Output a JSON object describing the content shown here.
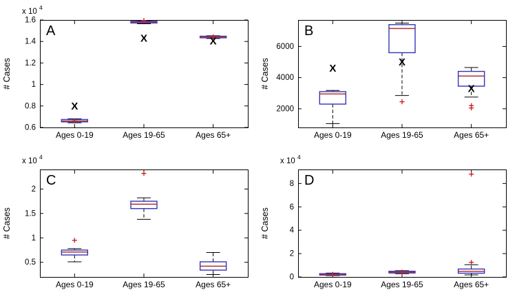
{
  "figure": {
    "background": "#ffffff"
  },
  "styles": {
    "box_color": "#3333bb",
    "median_color": "#b03030",
    "whisker_color": "#000000",
    "cap_color": "#000000",
    "outlier_color": "#cc2222",
    "x_marker_color": "#000000",
    "axis_color": "#000000"
  },
  "chart_data": [
    {
      "type": "boxplot",
      "panel_label": "A",
      "ylabel": "# Cases",
      "scale_label": {
        "base": "x 10",
        "exp": "4"
      },
      "categories": [
        "Ages 0-19",
        "Ages 19-65",
        "Ages 65+"
      ],
      "ylim": [
        6000,
        16000
      ],
      "yticks": [
        {
          "v": 6000,
          "label": "0.6"
        },
        {
          "v": 8000,
          "label": "0.8"
        },
        {
          "v": 10000,
          "label": "1"
        },
        {
          "v": 12000,
          "label": "1.2"
        },
        {
          "v": 14000,
          "label": "1.4"
        },
        {
          "v": 16000,
          "label": "1.6"
        }
      ],
      "boxes": [
        {
          "whisker_low": 6430,
          "q1": 6520,
          "median": 6600,
          "q3": 6740,
          "whisker_high": 6800,
          "outliers": [
            6620
          ],
          "x_marker": 8000
        },
        {
          "whisker_low": 15650,
          "q1": 15720,
          "median": 15800,
          "q3": 15880,
          "whisker_high": 15900,
          "outliers": [
            15950
          ],
          "x_marker": 14300
        },
        {
          "whisker_low": 14280,
          "q1": 14340,
          "median": 14430,
          "q3": 14490,
          "whisker_high": 14530,
          "outliers": [
            14430
          ],
          "x_marker": 14050
        }
      ]
    },
    {
      "type": "boxplot",
      "panel_label": "B",
      "ylabel": "# Cases",
      "scale_label": null,
      "categories": [
        "Ages 0-19",
        "Ages 19-65",
        "Ages 65+"
      ],
      "ylim": [
        800,
        7700
      ],
      "yticks": [
        {
          "v": 2000,
          "label": "2000"
        },
        {
          "v": 4000,
          "label": "4000"
        },
        {
          "v": 6000,
          "label": "6000"
        }
      ],
      "boxes": [
        {
          "whisker_low": 1050,
          "q1": 2300,
          "median": 2950,
          "q3": 3100,
          "whisker_high": 3180,
          "outliers": [],
          "x_marker": 4600
        },
        {
          "whisker_low": 2850,
          "q1": 5600,
          "median": 7150,
          "q3": 7400,
          "whisker_high": 7500,
          "outliers": [
            2450
          ],
          "x_marker": 5000
        },
        {
          "whisker_low": 2750,
          "q1": 3450,
          "median": 4100,
          "q3": 4400,
          "whisker_high": 4650,
          "outliers": [
            2050,
            2200
          ],
          "x_marker": 3300
        }
      ]
    },
    {
      "type": "boxplot",
      "panel_label": "C",
      "ylabel": "# Cases",
      "scale_label": {
        "base": "x 10",
        "exp": "4"
      },
      "categories": [
        "Ages 0-19",
        "Ages 19-65",
        "Ages 65+"
      ],
      "ylim": [
        2000,
        24000
      ],
      "yticks": [
        {
          "v": 5000,
          "label": "0.5"
        },
        {
          "v": 10000,
          "label": "1"
        },
        {
          "v": 15000,
          "label": "1.5"
        },
        {
          "v": 20000,
          "label": "2"
        }
      ],
      "boxes": [
        {
          "whisker_low": 5100,
          "q1": 6500,
          "median": 7100,
          "q3": 7500,
          "whisker_high": 7800,
          "outliers": [
            9500
          ],
          "x_marker": null
        },
        {
          "whisker_low": 13800,
          "q1": 16000,
          "median": 16900,
          "q3": 17500,
          "whisker_high": 18200,
          "outliers": [
            23200
          ],
          "x_marker": null
        },
        {
          "whisker_low": 2500,
          "q1": 3400,
          "median": 4200,
          "q3": 5100,
          "whisker_high": 7000,
          "outliers": [],
          "x_marker": null
        }
      ]
    },
    {
      "type": "boxplot",
      "panel_label": "D",
      "ylabel": "# Cases",
      "scale_label": {
        "base": "x 10",
        "exp": "4"
      },
      "categories": [
        "Ages 0-19",
        "Ages 19-65",
        "Ages 65+"
      ],
      "ylim": [
        0,
        92000
      ],
      "yticks": [
        {
          "v": 0,
          "label": "0"
        },
        {
          "v": 20000,
          "label": "2"
        },
        {
          "v": 40000,
          "label": "4"
        },
        {
          "v": 60000,
          "label": "6"
        },
        {
          "v": 80000,
          "label": "8"
        }
      ],
      "boxes": [
        {
          "whisker_low": 1200,
          "q1": 1700,
          "median": 2200,
          "q3": 2800,
          "whisker_high": 3300,
          "outliers": [
            2300
          ],
          "x_marker": null
        },
        {
          "whisker_low": 2800,
          "q1": 3400,
          "median": 4100,
          "q3": 4900,
          "whisker_high": 5400,
          "outliers": [
            4200
          ],
          "x_marker": null
        },
        {
          "whisker_low": 1800,
          "q1": 3200,
          "median": 4800,
          "q3": 6800,
          "whisker_high": 10500,
          "outliers": [
            12500,
            88000
          ],
          "x_marker": null
        }
      ]
    }
  ]
}
